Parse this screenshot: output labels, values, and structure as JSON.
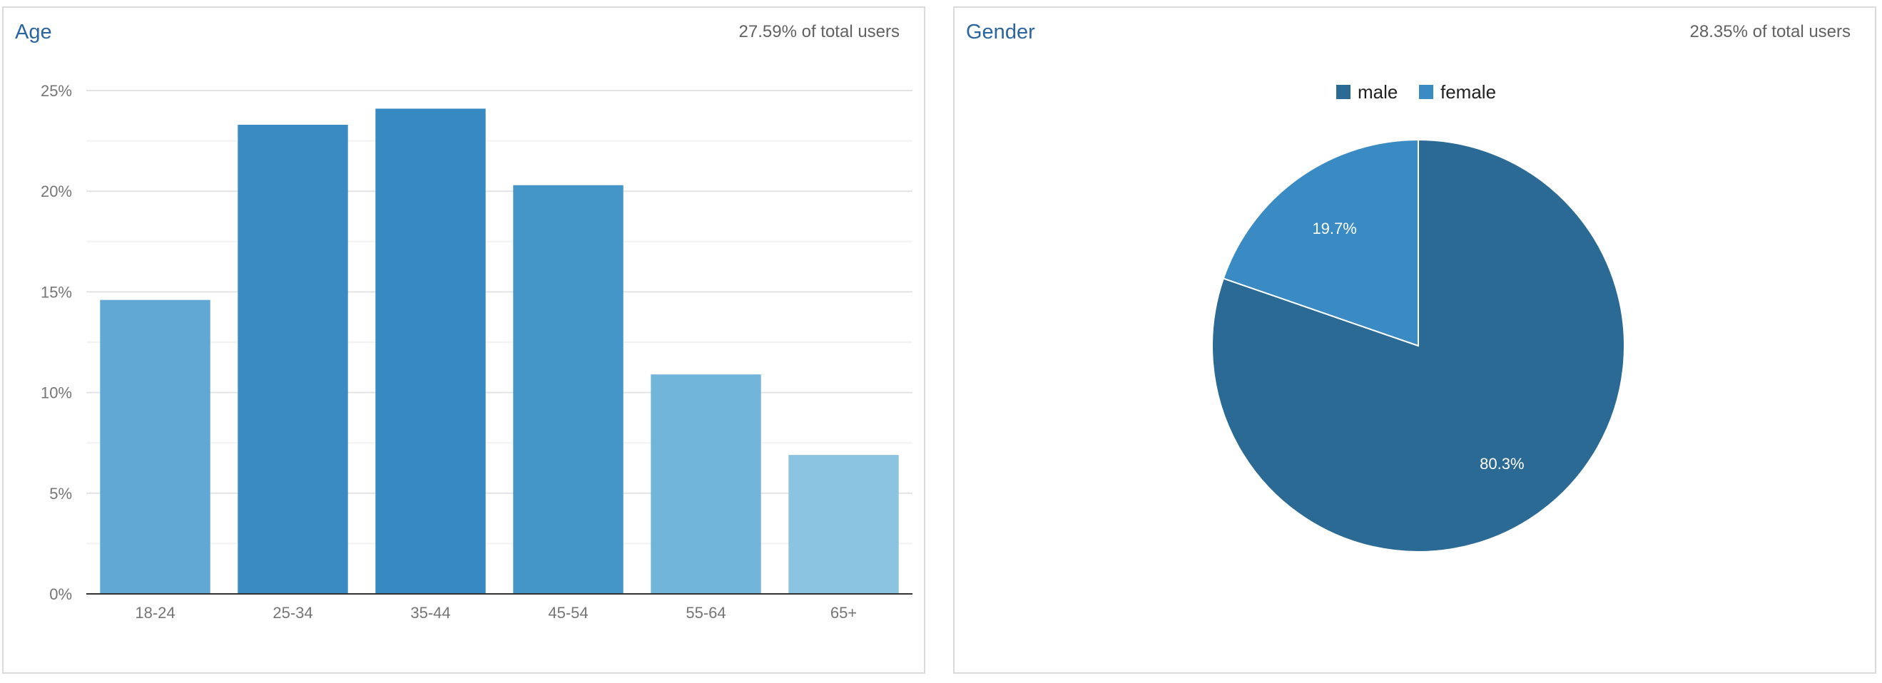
{
  "age_panel": {
    "title": "Age",
    "subtitle": "27.59% of total users"
  },
  "gender_panel": {
    "title": "Gender",
    "subtitle": "28.35% of total users"
  },
  "chart_data": [
    {
      "type": "bar",
      "title": "Age",
      "categories": [
        "18-24",
        "25-34",
        "35-44",
        "45-54",
        "55-64",
        "65+"
      ],
      "values": [
        14.6,
        23.3,
        24.1,
        20.3,
        10.9,
        6.9
      ],
      "colors": [
        "#61a9d4",
        "#3b8bc3",
        "#3789c1",
        "#4596c8",
        "#72b5da",
        "#8bc4e1"
      ],
      "ylim": [
        0,
        25
      ],
      "yticks": [
        0,
        5,
        10,
        15,
        20,
        25
      ],
      "ytick_labels": [
        "0%",
        "5%",
        "10%",
        "15%",
        "20%",
        "25%"
      ],
      "grid": true,
      "xlabel": "",
      "ylabel": ""
    },
    {
      "type": "pie",
      "title": "Gender",
      "slices": [
        {
          "name": "male",
          "value": 80.3,
          "label": "80.3%",
          "color": "#2b6a94"
        },
        {
          "name": "female",
          "value": 19.7,
          "label": "19.7%",
          "color": "#3a8bc4"
        }
      ],
      "legend_position": "top"
    }
  ]
}
